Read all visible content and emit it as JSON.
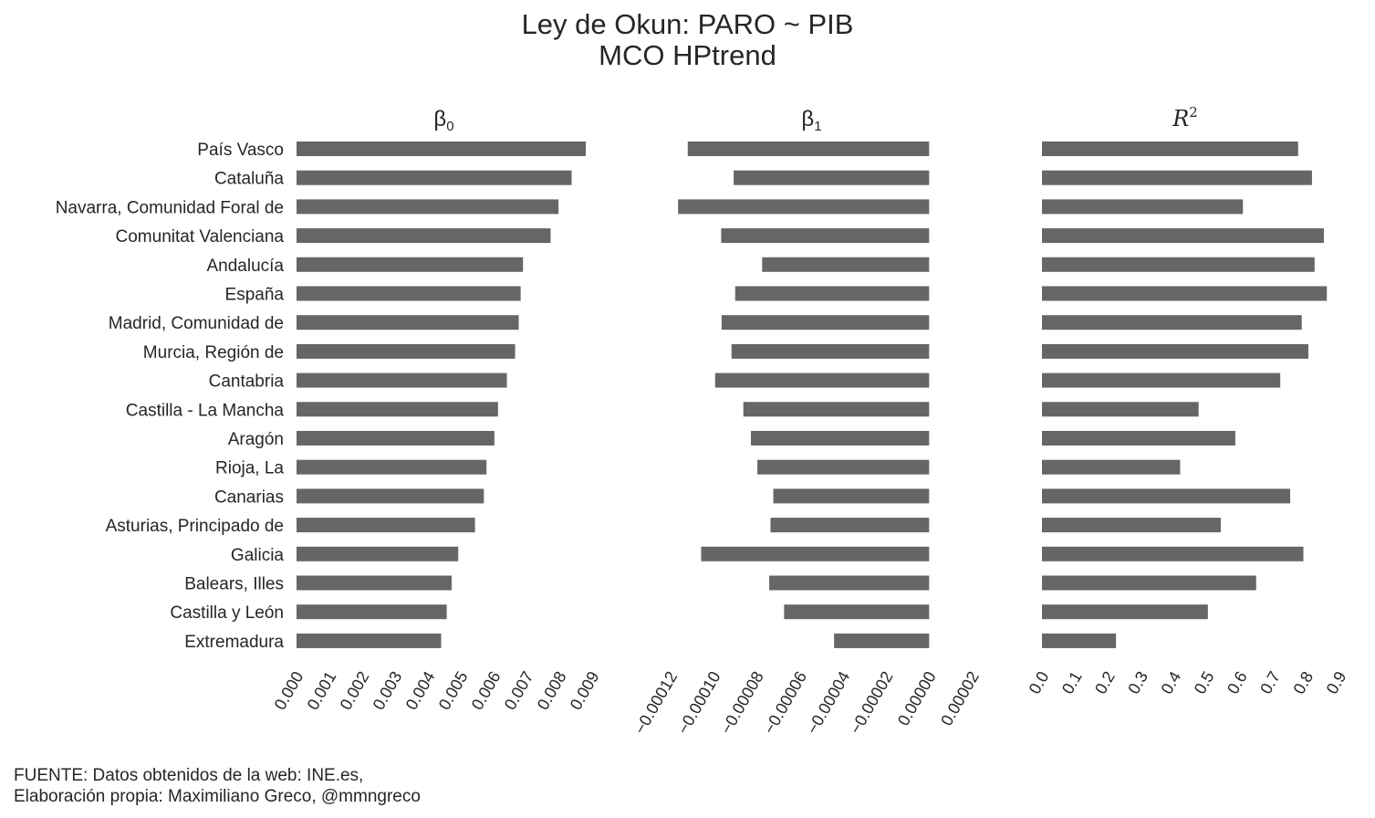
{
  "title_line1": "Ley de Okun: PARO ~ PIB",
  "title_line2": "MCO HPtrend",
  "footer_line1": "FUENTE: Datos obtenidos de la web: INE.es,",
  "footer_line2": "Elaboración propia: Maximiliano Greco, @mmngreco",
  "bar_color": "#666666",
  "chart_data": [
    {
      "type": "bar",
      "orientation": "horizontal",
      "title": "β0",
      "categories": [
        "País Vasco",
        "Cataluña",
        "Navarra, Comunidad Foral de",
        "Comunitat Valenciana",
        "Andalucía",
        "España",
        "Madrid, Comunidad de",
        "Murcia, Región de",
        "Cantabria",
        "Castilla - La Mancha",
        "Aragón",
        "Rioja, La",
        "Canarias",
        "Asturias, Principado de",
        "Galicia",
        "Balears, Illes",
        "Castilla y León",
        "Extremadura"
      ],
      "values": [
        0.0088,
        0.00837,
        0.00797,
        0.00773,
        0.00689,
        0.00682,
        0.00676,
        0.00665,
        0.0064,
        0.00613,
        0.00602,
        0.00578,
        0.0057,
        0.00543,
        0.00492,
        0.00472,
        0.00457,
        0.0044
      ],
      "xlim": [
        0,
        0.0093
      ],
      "ticks": [
        0,
        0.001,
        0.002,
        0.003,
        0.004,
        0.005,
        0.006,
        0.007,
        0.008,
        0.009
      ],
      "tick_labels": [
        "0.000",
        "0.001",
        "0.002",
        "0.003",
        "0.004",
        "0.005",
        "0.006",
        "0.007",
        "0.008",
        "0.009"
      ],
      "grid": false
    },
    {
      "type": "bar",
      "orientation": "horizontal",
      "title": "β1",
      "categories": [
        "País Vasco",
        "Cataluña",
        "Navarra, Comunidad Foral de",
        "Comunitat Valenciana",
        "Andalucía",
        "España",
        "Madrid, Comunidad de",
        "Murcia, Región de",
        "Cantabria",
        "Castilla - La Mancha",
        "Aragón",
        "Rioja, La",
        "Canarias",
        "Asturias, Principado de",
        "Galicia",
        "Balears, Illes",
        "Castilla y León",
        "Extremadura"
      ],
      "values": [
        -0.000112,
        -9.07e-05,
        -0.0001165,
        -9.65e-05,
        -7.75e-05,
        -9e-05,
        -9.63e-05,
        -9.17e-05,
        -9.93e-05,
        -8.62e-05,
        -8.27e-05,
        -7.97e-05,
        -7.23e-05,
        -7.36e-05,
        -0.0001058,
        -7.42e-05,
        -6.73e-05,
        -4.41e-05
      ],
      "xlim": [
        -0.000128,
        2.4e-05
      ],
      "ticks": [
        -0.00012,
        -0.0001,
        -8e-05,
        -6e-05,
        -4e-05,
        -2e-05,
        0,
        2e-05
      ],
      "tick_labels": [
        "−0.00012",
        "−0.00010",
        "−0.00008",
        "−0.00006",
        "−0.00004",
        "−0.00002",
        "0.00000",
        "0.00002"
      ],
      "grid": false
    },
    {
      "type": "bar",
      "orientation": "horizontal",
      "title": "R2",
      "categories": [
        "País Vasco",
        "Cataluña",
        "Navarra, Comunidad Foral de",
        "Comunitat Valenciana",
        "Andalucía",
        "España",
        "Madrid, Comunidad de",
        "Murcia, Región de",
        "Cantabria",
        "Castilla - La Mancha",
        "Aragón",
        "Rioja, La",
        "Canarias",
        "Asturias, Principado de",
        "Galicia",
        "Balears, Illes",
        "Castilla y León",
        "Extremadura"
      ],
      "values": [
        0.775,
        0.817,
        0.608,
        0.853,
        0.825,
        0.862,
        0.786,
        0.806,
        0.721,
        0.474,
        0.585,
        0.418,
        0.751,
        0.541,
        0.791,
        0.648,
        0.502,
        0.224
      ],
      "xlim": [
        0,
        0.9
      ],
      "ticks": [
        0,
        0.1,
        0.2,
        0.3,
        0.4,
        0.5,
        0.6,
        0.7,
        0.8,
        0.9
      ],
      "tick_labels": [
        "0.0",
        "0.1",
        "0.2",
        "0.3",
        "0.4",
        "0.5",
        "0.6",
        "0.7",
        "0.8",
        "0.9"
      ],
      "grid": false
    }
  ]
}
